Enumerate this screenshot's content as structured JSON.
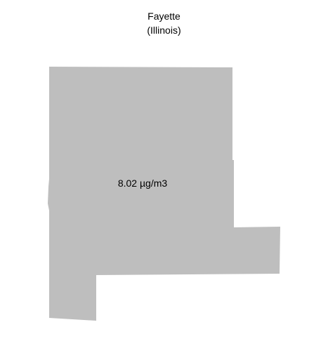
{
  "map": {
    "title": "Fayette",
    "subtitle": "(Illinois)",
    "region": {
      "name": "Fayette",
      "value_label": "8.02 µg/m3",
      "fill_color": "#bebebe"
    },
    "background_color": "#ffffff"
  }
}
